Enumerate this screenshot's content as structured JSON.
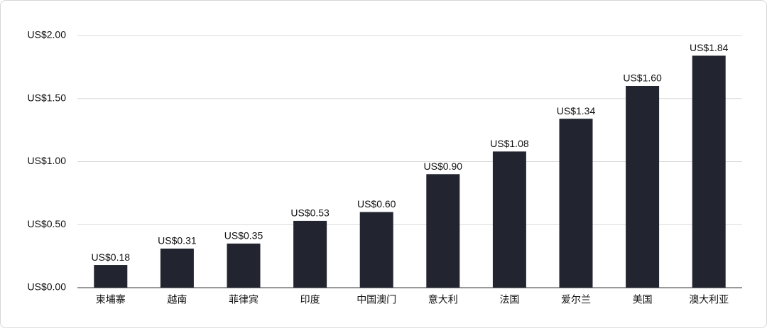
{
  "chart_data": {
    "type": "bar",
    "categories": [
      "柬埔寨",
      "越南",
      "菲律宾",
      "印度",
      "中国澳门",
      "意大利",
      "法国",
      "爱尔兰",
      "美国",
      "澳大利亚"
    ],
    "values": [
      0.18,
      0.31,
      0.35,
      0.53,
      0.6,
      0.9,
      1.08,
      1.34,
      1.6,
      1.84
    ],
    "value_labels": [
      "US$0.18",
      "US$0.31",
      "US$0.35",
      "US$0.53",
      "US$0.60",
      "US$0.90",
      "US$1.08",
      "US$1.34",
      "US$1.60",
      "US$1.84"
    ],
    "color": "#22252f",
    "ylim": [
      0,
      2
    ],
    "yticks": [
      {
        "value": 0,
        "label": "US$0.00"
      },
      {
        "value": 0.5,
        "label": "US$0.50"
      },
      {
        "value": 1,
        "label": "US$1.00"
      },
      {
        "value": 1.5,
        "label": "US$1.50"
      },
      {
        "value": 2,
        "label": "US$2.00"
      }
    ],
    "grid": true
  }
}
